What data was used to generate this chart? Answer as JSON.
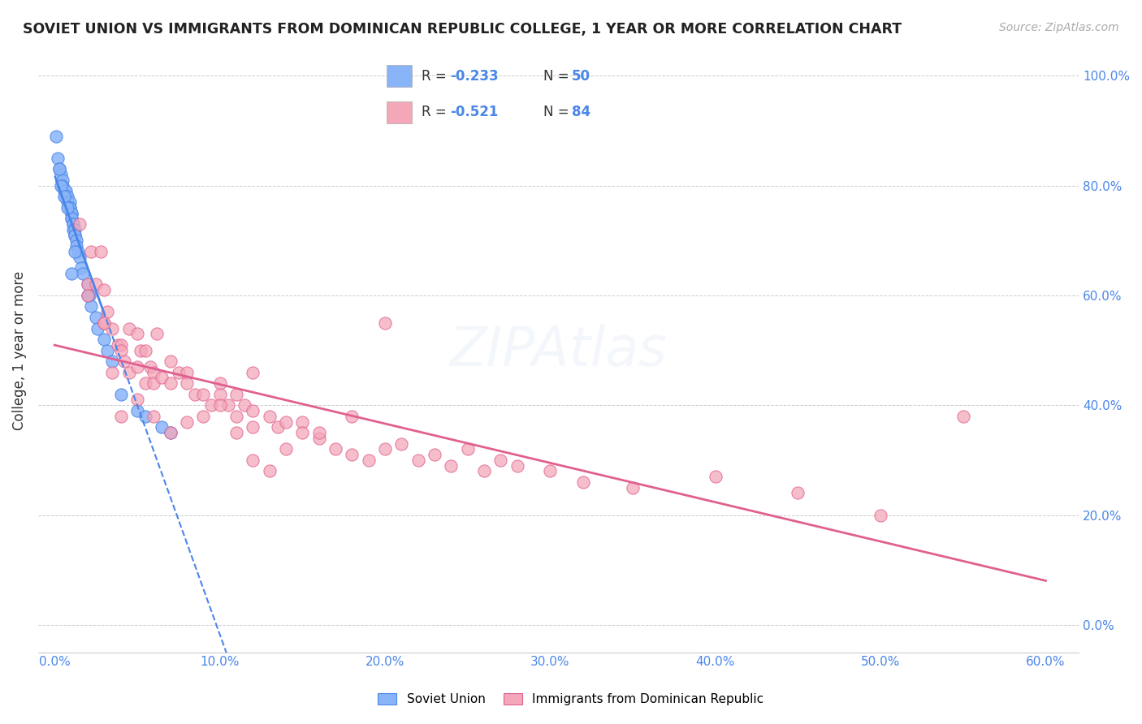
{
  "title": "SOVIET UNION VS IMMIGRANTS FROM DOMINICAN REPUBLIC COLLEGE, 1 YEAR OR MORE CORRELATION CHART",
  "source": "Source: ZipAtlas.com",
  "xlabel_ticks": [
    "0.0%",
    "10.0%",
    "20.0%",
    "30.0%",
    "40.0%",
    "50.0%",
    "60.0%"
  ],
  "xlabel_vals": [
    0.0,
    10.0,
    20.0,
    30.0,
    40.0,
    50.0,
    60.0
  ],
  "ylabel_ticks": [
    "0.0%",
    "20.0%",
    "40.0%",
    "60.0%",
    "80.0%",
    "100.0%"
  ],
  "ylabel_vals": [
    0.0,
    20.0,
    40.0,
    60.0,
    80.0,
    100.0
  ],
  "ylabel_label": "College, 1 year or more",
  "legend_label1": "Soviet Union",
  "legend_label2": "Immigrants from Dominican Republic",
  "R1": -0.233,
  "N1": 50,
  "R2": -0.521,
  "N2": 84,
  "color1": "#8ab4f8",
  "color1_dark": "#4a86e8",
  "color2": "#f4a7b9",
  "color2_dark": "#e06090",
  "background_color": "#ffffff",
  "grid_color": "#ddddee",
  "soviet_x": [
    0.1,
    0.2,
    0.3,
    0.4,
    0.5,
    0.5,
    0.6,
    0.7,
    0.7,
    0.8,
    0.8,
    0.9,
    0.9,
    0.9,
    1.0,
    1.0,
    1.0,
    1.0,
    1.1,
    1.1,
    1.1,
    1.2,
    1.2,
    1.2,
    1.3,
    1.3,
    1.4,
    1.5,
    1.6,
    1.7,
    2.0,
    2.1,
    2.2,
    2.5,
    2.6,
    3.0,
    3.2,
    3.5,
    4.0,
    5.0,
    5.5,
    6.5,
    7.0,
    0.3,
    0.4,
    0.6,
    0.8,
    1.0,
    1.2,
    2.0
  ],
  "soviet_y": [
    89,
    85,
    83,
    82,
    81,
    80,
    79,
    79,
    78,
    78,
    77,
    77,
    76,
    76,
    75,
    75,
    74,
    74,
    73,
    73,
    72,
    72,
    71,
    71,
    70,
    69,
    68,
    67,
    65,
    64,
    62,
    60,
    58,
    56,
    54,
    52,
    50,
    48,
    42,
    39,
    38,
    36,
    35,
    83,
    80,
    78,
    76,
    64,
    68,
    60
  ],
  "dr_x": [
    1.5,
    2.0,
    2.2,
    2.5,
    2.8,
    3.0,
    3.0,
    3.2,
    3.5,
    3.5,
    3.8,
    4.0,
    4.0,
    4.2,
    4.5,
    4.5,
    5.0,
    5.0,
    5.2,
    5.5,
    5.5,
    5.8,
    6.0,
    6.0,
    6.2,
    6.5,
    7.0,
    7.0,
    7.5,
    8.0,
    8.0,
    8.5,
    9.0,
    9.5,
    10.0,
    10.0,
    10.5,
    11.0,
    11.0,
    11.5,
    12.0,
    12.0,
    13.0,
    13.5,
    14.0,
    15.0,
    15.0,
    16.0,
    17.0,
    18.0,
    19.0,
    20.0,
    21.0,
    22.0,
    23.0,
    24.0,
    25.0,
    26.0,
    27.0,
    28.0,
    30.0,
    32.0,
    35.0,
    40.0,
    45.0,
    50.0,
    2.0,
    3.0,
    4.0,
    5.0,
    6.0,
    7.0,
    8.0,
    9.0,
    10.0,
    11.0,
    12.0,
    13.0,
    14.0,
    16.0,
    18.0,
    55.0,
    12.0,
    20.0
  ],
  "dr_y": [
    73,
    62,
    68,
    62,
    68,
    61,
    55,
    57,
    54,
    46,
    51,
    51,
    50,
    48,
    54,
    46,
    53,
    47,
    50,
    50,
    44,
    47,
    46,
    44,
    53,
    45,
    48,
    44,
    46,
    46,
    44,
    42,
    42,
    40,
    44,
    42,
    40,
    42,
    38,
    40,
    39,
    36,
    38,
    36,
    37,
    37,
    35,
    34,
    32,
    31,
    30,
    32,
    33,
    30,
    31,
    29,
    32,
    28,
    30,
    29,
    28,
    26,
    25,
    27,
    24,
    20,
    60,
    55,
    38,
    41,
    38,
    35,
    37,
    38,
    40,
    35,
    30,
    28,
    32,
    35,
    38,
    38,
    46,
    55
  ]
}
